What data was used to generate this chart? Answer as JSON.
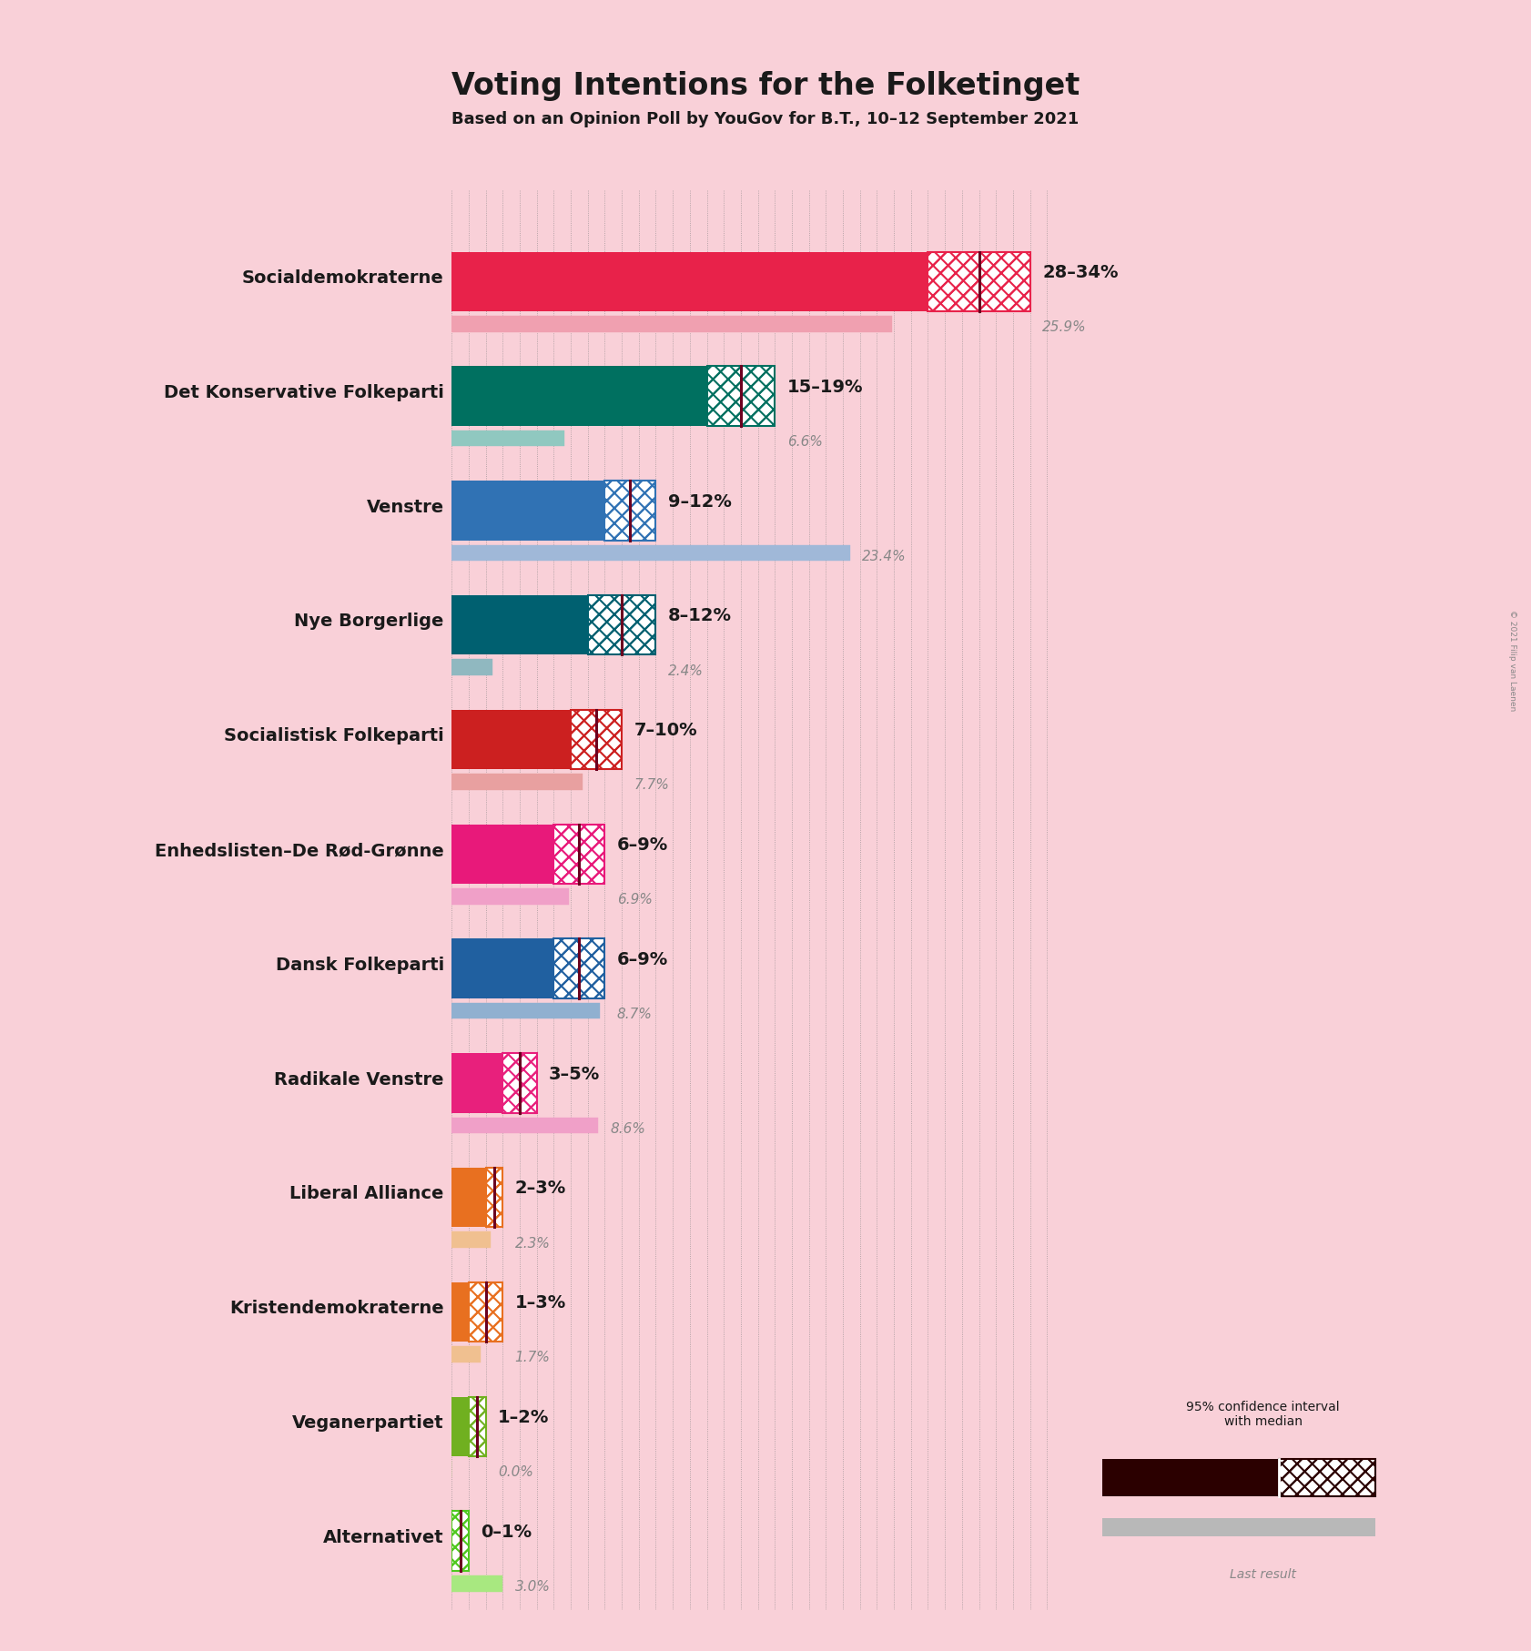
{
  "title": "Voting Intentions for the Folketinget",
  "subtitle": "Based on an Opinion Poll by YouGov for B.T., 10–12 September 2021",
  "copyright": "© 2021 Filip van Laenen",
  "background_color": "#f9d0d8",
  "parties": [
    {
      "name": "Socialdemokraterne",
      "ci_low": 28,
      "median": 31,
      "ci_high": 34,
      "last_result": 25.9,
      "color": "#e8224a",
      "color_light": "#f0a0b0",
      "label": "28–34%",
      "last_label": "25.9%"
    },
    {
      "name": "Det Konservative Folkeparti",
      "ci_low": 15,
      "median": 17,
      "ci_high": 19,
      "last_result": 6.6,
      "color": "#007060",
      "color_light": "#90c8c0",
      "label": "15–19%",
      "last_label": "6.6%"
    },
    {
      "name": "Venstre",
      "ci_low": 9,
      "median": 10.5,
      "ci_high": 12,
      "last_result": 23.4,
      "color": "#3072b4",
      "color_light": "#a0b8d8",
      "label": "9–12%",
      "last_label": "23.4%"
    },
    {
      "name": "Nye Borgerlige",
      "ci_low": 8,
      "median": 10,
      "ci_high": 12,
      "last_result": 2.4,
      "color": "#006070",
      "color_light": "#90b8c0",
      "label": "8–12%",
      "last_label": "2.4%"
    },
    {
      "name": "Socialistisk Folkeparti",
      "ci_low": 7,
      "median": 8.5,
      "ci_high": 10,
      "last_result": 7.7,
      "color": "#cc2020",
      "color_light": "#e8a0a0",
      "label": "7–10%",
      "last_label": "7.7%"
    },
    {
      "name": "Enhedslisten–De Rød-Grønne",
      "ci_low": 6,
      "median": 7.5,
      "ci_high": 9,
      "last_result": 6.9,
      "color": "#e8197a",
      "color_light": "#f0a0c8",
      "label": "6–9%",
      "last_label": "6.9%"
    },
    {
      "name": "Dansk Folkeparti",
      "ci_low": 6,
      "median": 7.5,
      "ci_high": 9,
      "last_result": 8.7,
      "color": "#2060a0",
      "color_light": "#90b0d0",
      "label": "6–9%",
      "last_label": "8.7%"
    },
    {
      "name": "Radikale Venstre",
      "ci_low": 3,
      "median": 4,
      "ci_high": 5,
      "last_result": 8.6,
      "color": "#e8207c",
      "color_light": "#f0a0c8",
      "label": "3–5%",
      "last_label": "8.6%"
    },
    {
      "name": "Liberal Alliance",
      "ci_low": 2,
      "median": 2.5,
      "ci_high": 3,
      "last_result": 2.3,
      "color": "#e87020",
      "color_light": "#f0c090",
      "label": "2–3%",
      "last_label": "2.3%"
    },
    {
      "name": "Kristendemokraterne",
      "ci_low": 1,
      "median": 2,
      "ci_high": 3,
      "last_result": 1.7,
      "color": "#e87020",
      "color_light": "#f0c090",
      "label": "1–3%",
      "last_label": "1.7%"
    },
    {
      "name": "Veganerpartiet",
      "ci_low": 1,
      "median": 1.5,
      "ci_high": 2,
      "last_result": 0.0,
      "color": "#70b020",
      "color_light": "#b8d880",
      "label": "1–2%",
      "last_label": "0.0%"
    },
    {
      "name": "Alternativet",
      "ci_low": 0,
      "median": 0.5,
      "ci_high": 1,
      "last_result": 3.0,
      "color": "#50c820",
      "color_light": "#a8e880",
      "label": "0–1%",
      "last_label": "3.0%"
    }
  ],
  "xlim_max": 36,
  "bar_height": 0.52,
  "last_bar_height": 0.14,
  "last_bar_gap": 0.04,
  "grid_color": "#808080",
  "median_line_color": "#6b0020",
  "last_result_color": "#b8b8b8",
  "label_fontsize": 14,
  "sublabel_fontsize": 11,
  "party_fontsize": 14
}
